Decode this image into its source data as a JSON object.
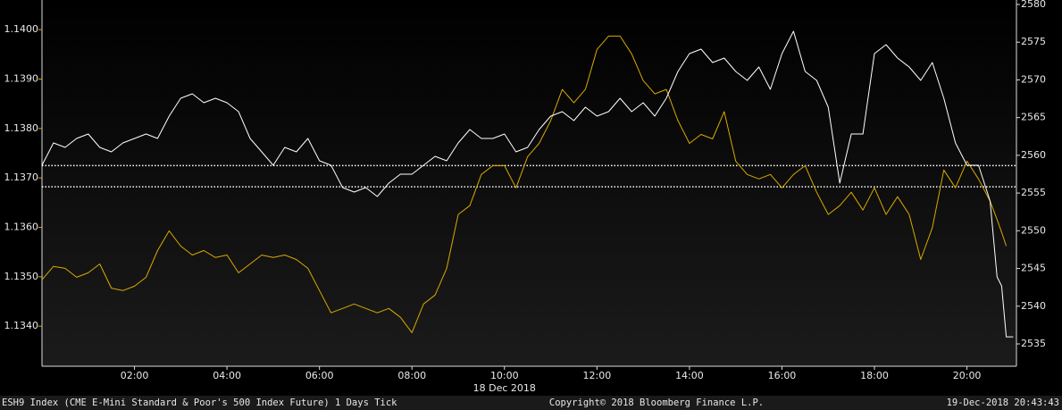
{
  "chart_data": {
    "type": "line",
    "x": [
      0,
      0.25,
      0.5,
      0.75,
      1,
      1.25,
      1.5,
      1.75,
      2,
      2.25,
      2.5,
      2.75,
      3,
      3.25,
      3.5,
      3.75,
      4,
      4.25,
      4.5,
      4.75,
      5,
      5.25,
      5.5,
      5.75,
      6,
      6.25,
      6.5,
      6.75,
      7,
      7.25,
      7.5,
      7.75,
      8,
      8.25,
      8.5,
      8.75,
      9,
      9.25,
      9.5,
      9.75,
      10,
      10.25,
      10.5,
      10.75,
      11,
      11.25,
      11.5,
      11.75,
      12,
      12.25,
      12.5,
      12.75,
      13,
      13.25,
      13.5,
      13.75,
      14,
      14.25,
      14.5,
      14.75,
      15,
      15.25,
      15.5,
      15.75,
      16,
      16.25,
      16.5,
      16.75,
      17,
      17.25,
      17.5,
      17.75,
      18,
      18.25,
      18.5,
      18.75,
      19,
      19.25,
      19.5,
      19.75,
      20,
      20.25,
      20.5,
      20.65,
      20.75,
      20.85,
      21
    ],
    "series": [
      {
        "color": "#d9a900",
        "axis": "y",
        "values": [
          1.13494,
          1.13521,
          1.13517,
          1.13499,
          1.13508,
          1.13526,
          1.13477,
          1.13472,
          1.13481,
          1.13499,
          1.13553,
          1.13593,
          1.13562,
          1.13544,
          1.13553,
          1.13539,
          1.13544,
          1.13508,
          1.13526,
          1.13544,
          1.13539,
          1.13544,
          1.13535,
          1.13517,
          1.13472,
          1.13427,
          1.13436,
          1.13445,
          1.13436,
          1.13427,
          1.13436,
          1.13418,
          1.13387,
          1.13445,
          1.13463,
          1.13517,
          1.13626,
          1.13644,
          1.13707,
          1.13725,
          1.13725,
          1.1368,
          1.13743,
          1.1377,
          1.13816,
          1.13879,
          1.13852,
          1.13879,
          1.1396,
          1.13987,
          1.13987,
          1.13951,
          1.13897,
          1.1387,
          1.13879,
          1.13816,
          1.1377,
          1.13788,
          1.13779,
          1.13834,
          1.13734,
          1.13707,
          1.13698,
          1.13707,
          1.1368,
          1.13707,
          1.13725,
          1.13671,
          1.13626,
          1.13644,
          1.13671,
          1.13635,
          1.1368,
          1.13626,
          1.13662,
          1.13626,
          1.13535,
          1.13599,
          1.13716,
          1.1368,
          1.13734,
          1.13698,
          1.13653,
          1.13616,
          1.1359,
          1.13562,
          null
        ]
      },
      {
        "color": "#ffffff",
        "axis": "y2",
        "values": [
          2558.68,
          2561.64,
          2561.05,
          2562.24,
          2562.83,
          2561.05,
          2560.46,
          2561.64,
          2562.24,
          2562.83,
          2562.24,
          2565.2,
          2567.56,
          2568.16,
          2566.97,
          2567.56,
          2566.97,
          2565.79,
          2562.24,
          2560.46,
          2558.68,
          2561.05,
          2560.46,
          2562.24,
          2559.27,
          2558.68,
          2555.72,
          2555.13,
          2555.72,
          2554.54,
          2556.31,
          2557.5,
          2557.5,
          2558.68,
          2559.87,
          2559.27,
          2561.64,
          2563.42,
          2562.24,
          2562.24,
          2562.83,
          2560.46,
          2561.05,
          2563.42,
          2565.2,
          2565.79,
          2564.6,
          2566.38,
          2565.2,
          2565.79,
          2567.56,
          2565.79,
          2566.97,
          2565.2,
          2567.56,
          2571.12,
          2573.49,
          2574.08,
          2572.3,
          2572.89,
          2571.12,
          2569.93,
          2571.71,
          2568.75,
          2573.49,
          2576.45,
          2571.12,
          2569.93,
          2566.38,
          2556.31,
          2562.83,
          2562.83,
          2573.49,
          2574.67,
          2572.89,
          2571.71,
          2569.93,
          2572.3,
          2567.56,
          2561.64,
          2558.68,
          2558.68,
          2553.95,
          2543.88,
          2542.69,
          2535.94,
          2535.94
        ]
      }
    ],
    "reference_lines": [
      1.13725,
      1.13682
    ],
    "xlim": [
      0,
      21.07
    ],
    "xticks": [
      {
        "value": 2,
        "label": "02:00"
      },
      {
        "value": 4,
        "label": "04:00"
      },
      {
        "value": 6,
        "label": "06:00"
      },
      {
        "value": 8,
        "label": "08:00"
      },
      {
        "value": 10,
        "label": "10:00"
      },
      {
        "value": 12,
        "label": "12:00"
      },
      {
        "value": 14,
        "label": "14:00"
      },
      {
        "value": 16,
        "label": "16:00"
      },
      {
        "value": 18,
        "label": "18:00"
      },
      {
        "value": 20,
        "label": "20:00"
      }
    ],
    "date_label": "18 Dec 2018",
    "ylim": [
      1.13319,
      1.1406
    ],
    "yticks": [
      {
        "value": 1.134,
        "label": "1.1340"
      },
      {
        "value": 1.135,
        "label": "1.1350"
      },
      {
        "value": 1.136,
        "label": "1.1360"
      },
      {
        "value": 1.137,
        "label": "1.1370"
      },
      {
        "value": 1.138,
        "label": "1.1380"
      },
      {
        "value": 1.139,
        "label": "1.1390"
      },
      {
        "value": 1.14,
        "label": "1.1400"
      }
    ],
    "y2lim": [
      2532.04,
      2580.59
    ],
    "y2ticks": [
      2535,
      2540,
      2545,
      2550,
      2555,
      2560,
      2565,
      2570,
      2575,
      2580
    ],
    "footer_left": "ESH9 Index (CME E-Mini Standard & Poor's 500 Index Future) 1 Days  Tick",
    "footer_center": "Copyright© 2018 Bloomberg Finance L.P.",
    "footer_right": "19-Dec-2018 20:43:43"
  }
}
